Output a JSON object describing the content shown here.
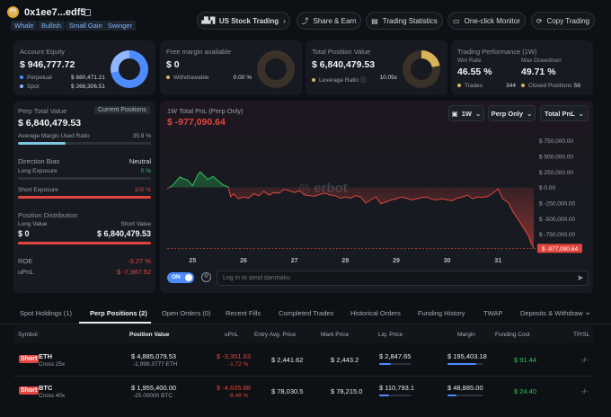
{
  "header": {
    "address": "0x1ee7...edf5",
    "tags": [
      "Whale",
      "Bullish",
      "Small Gain",
      "Swinger"
    ],
    "buttons": {
      "us_stock": "US Stock Trading",
      "share": "Share & Earn",
      "stats": "Trading Statistics",
      "monitor": "One-click Monitor",
      "copy": "Copy Trading"
    }
  },
  "cards": {
    "equity": {
      "label": "Account Equity",
      "value": "$ 946,777.72",
      "perp_label": "Perpetual",
      "perp_value": "$ 680,471.21",
      "spot_label": "Spot",
      "spot_value": "$ 266,306.51"
    },
    "margin": {
      "label": "Free margin available",
      "value": "$ 0",
      "withdraw_label": "Withdrawable",
      "withdraw_value": "0.00 %"
    },
    "position": {
      "label": "Total Position Value",
      "value": "$ 6,840,479.53",
      "leverage_label": "Leverage Ratio",
      "leverage_value": "10.05x"
    },
    "performance": {
      "label": "Trading Performance (1W)",
      "win_label": "Win Rate",
      "win_value": "46.55 %",
      "dd_label": "Max Drawdown",
      "dd_value": "49.71 %",
      "trades_label": "Trades",
      "trades_value": "344",
      "closed_label": "Closed Positions",
      "closed_value": "58"
    }
  },
  "perp": {
    "label": "Perp Total Value",
    "current_btn": "Current Positions",
    "value": "$ 6,840,479.53",
    "margin_ratio_label": "Average Margin Used Ratio",
    "margin_ratio_value": "35.9 %",
    "margin_ratio": 0.359,
    "direction_label": "Direction Bias",
    "direction_value": "Neutral",
    "long_label": "Long Exposure",
    "long_value": "0 %",
    "short_label": "Short Exposure",
    "short_value": "100 %",
    "distribution_label": "Position Distribution",
    "long_value_label": "Long Value",
    "short_value_label": "Short Value",
    "long_value_amt": "$ 0",
    "short_value_amt": "$ 6,840,479.53",
    "roe_label": "ROE",
    "roe_value": "-3.27 %",
    "upnl_label": "uPnL",
    "upnl_value": "$ -7,987.52"
  },
  "pnl_chart": {
    "title": "1W Total PnL (Perp Only)",
    "value": "$ -977,090.64",
    "controls": {
      "period": "1W",
      "scope": "Perp Only",
      "metric": "Total PnL"
    },
    "watermark": "erbot",
    "toggle": "ON",
    "danmaku_placeholder": "Log in to send danmaku"
  },
  "chart_data": {
    "type": "area",
    "title": "1W Total PnL (Perp Only)",
    "x_ticks": [
      "25",
      "26",
      "27",
      "28",
      "29",
      "30",
      "31"
    ],
    "y_ticks": [
      "$ 750,000.00",
      "$ 500,000.00",
      "$ 250,000.00",
      "$ 0.00",
      "$ -250,000.00",
      "$ -500,000.00",
      "$ -750,000.00"
    ],
    "ylim": [
      -1000000,
      875000
    ],
    "xlim": [
      24.5,
      31.7
    ],
    "x": [
      24.5,
      24.6,
      24.7,
      24.75,
      24.8,
      24.9,
      25.0,
      25.1,
      25.15,
      25.2,
      25.3,
      25.4,
      25.5,
      25.6,
      25.7,
      25.75,
      25.8,
      25.9,
      26.0,
      26.1,
      26.2,
      26.3,
      26.4,
      26.5,
      26.6,
      26.7,
      26.8,
      26.9,
      27.0,
      27.1,
      27.2,
      27.3,
      27.4,
      27.5,
      27.6,
      27.7,
      27.8,
      27.9,
      28.0,
      28.1,
      28.2,
      28.3,
      28.4,
      28.5,
      28.6,
      28.7,
      28.8,
      28.9,
      29.0,
      29.1,
      29.2,
      29.3,
      29.4,
      29.5,
      29.6,
      29.7,
      29.8,
      29.9,
      30.0,
      30.1,
      30.2,
      30.3,
      30.4,
      30.5,
      30.6,
      30.7,
      30.8,
      30.9,
      31.0,
      31.1,
      31.2,
      31.3,
      31.4,
      31.5,
      31.6,
      31.65,
      31.7
    ],
    "y": [
      -20000,
      30000,
      120000,
      170000,
      150000,
      120000,
      30000,
      200000,
      250000,
      210000,
      130000,
      180000,
      110000,
      40000,
      10000,
      -150000,
      -100000,
      -180000,
      -150000,
      -170000,
      -100000,
      -130000,
      -60000,
      -120000,
      -80000,
      -90000,
      -30000,
      -50000,
      -80000,
      -50000,
      -120000,
      -130000,
      -140000,
      -110000,
      -90000,
      -120000,
      -130000,
      -170000,
      -150000,
      -170000,
      -130000,
      -150000,
      -250000,
      -200000,
      -150000,
      -260000,
      -230000,
      -200000,
      -180000,
      -150000,
      -170000,
      -200000,
      -180000,
      -160000,
      -150000,
      -190000,
      -200000,
      -180000,
      -200000,
      -210000,
      -170000,
      -150000,
      -120000,
      -180000,
      -150000,
      -160000,
      -140000,
      -90000,
      -20000,
      -190000,
      -240000,
      -400000,
      -520000,
      -650000,
      -780000,
      -900000,
      -977090.64
    ],
    "current_label": "$ -977,090.64"
  },
  "tabs": [
    "Spot Holdings (1)",
    "Perp Positions (2)",
    "Open Orders (0)",
    "Recent Fills",
    "Completed Trades",
    "Historical Orders",
    "Funding History",
    "TWAP",
    "Deposits & Withdraw"
  ],
  "table": {
    "headers": [
      "Symbol",
      "Position Value",
      "uPnL",
      "Entry Avg. Price",
      "Mark Price",
      "Liq. Price",
      "Margin",
      "Funding Cost",
      "TP/SL"
    ],
    "rows": [
      {
        "side": "Short",
        "symbol": "ETH",
        "mode": "Cross 25x",
        "value": "$ 4,885,079.53",
        "qty": "-1,999.3777 ETH",
        "upnl": "$ -3,351.63",
        "upnl_pct": "-1.72 %",
        "entry": "$ 2,441.62",
        "mark": "$ 2,443.2",
        "liq": "$ 2,847.65",
        "liq_fill": 0.35,
        "margin": "$ 195,403.18",
        "margin_fill": 0.8,
        "funding": "$ 91.44",
        "tpsl": "-/-"
      },
      {
        "side": "Short",
        "symbol": "BTC",
        "mode": "Cross 40x",
        "value": "$ 1,955,400.00",
        "qty": "-25.00000 BTC",
        "upnl": "$ -4,635.88",
        "upnl_pct": "-9.48 %",
        "entry": "$ 78,030.5",
        "mark": "$ 78,215.0",
        "liq": "$ 110,793.1",
        "liq_fill": 0.3,
        "margin": "$ 48,885.00",
        "margin_fill": 0.25,
        "funding": "$ 24.40",
        "tpsl": "-/-"
      }
    ]
  },
  "colors": {
    "accent": "#4d8bff",
    "green": "#2fc25b",
    "red": "#e0463e",
    "gold": "#d9b45a"
  }
}
